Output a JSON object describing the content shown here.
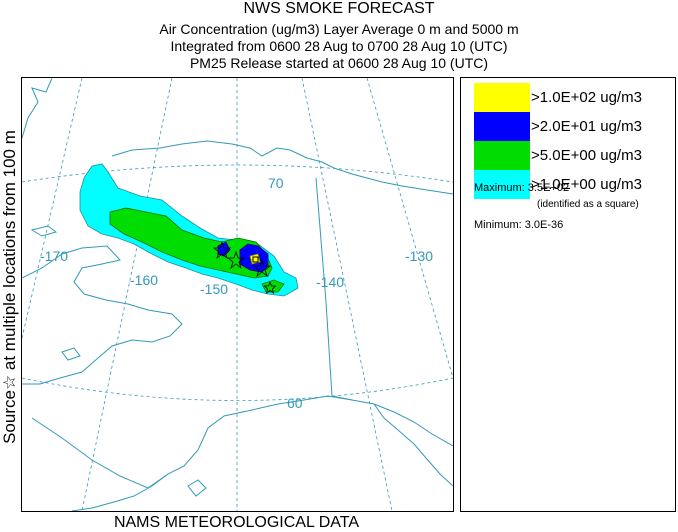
{
  "title": "NWS SMOKE FORECAST",
  "subtitle_lines": [
    "Air Concentration (ug/m3) Layer Average    0 m and  5000 m",
    "Integrated from 0600 28 Aug to 0700 28 Aug 10 (UTC)",
    "PM25 Release started at 0600 28 Aug 10 (UTC)"
  ],
  "side_label": "Source☆ at multiple locations  from   100 m",
  "footer": "NAMS METEOROLOGICAL DATA",
  "legend": {
    "items": [
      {
        "label": ">1.0E+02 ug/m3",
        "color": "#ffff00"
      },
      {
        "label": ">2.0E+01 ug/m3",
        "color": "#0000ff"
      },
      {
        "label": ">5.0E+00 ug/m3",
        "color": "#00dd00"
      },
      {
        "label": ">1.0E+00 ug/m3",
        "color": "#00ffff"
      }
    ],
    "maximum": "Maximum: 3.5E+02",
    "maximum_note": "(identified as a square)",
    "minimum": "Minimum: 3.0E-36"
  },
  "map": {
    "grid_labels": [
      "-170",
      "-160",
      "-150",
      "-140",
      "-130",
      "70",
      "60"
    ],
    "colors": {
      "grid": "#3399bb",
      "coast": "#3399bb",
      "border": "#3399bb"
    }
  }
}
